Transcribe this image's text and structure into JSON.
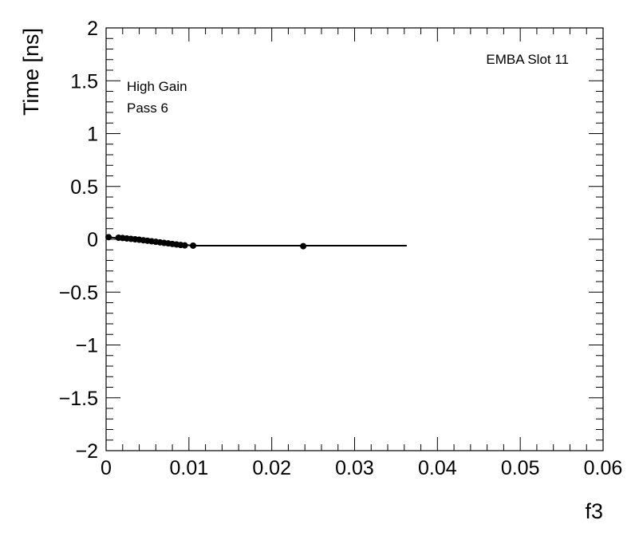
{
  "chart_data": {
    "type": "scatter",
    "title": "",
    "xlabel": "f3",
    "ylabel": "Time [ns]",
    "xlim": [
      0,
      0.06
    ],
    "ylim": [
      -2,
      2
    ],
    "x_ticks": [
      0,
      0.01,
      0.02,
      0.03,
      0.04,
      0.05,
      0.06
    ],
    "x_tick_labels": [
      "0",
      "0.01",
      "0.02",
      "0.03",
      "0.04",
      "0.05",
      "0.06"
    ],
    "y_ticks": [
      -2,
      -1.5,
      -1,
      -0.5,
      0,
      0.5,
      1,
      1.5,
      2
    ],
    "y_tick_labels": [
      "−2",
      "−1.5",
      "−1",
      "−0.5",
      "0",
      "0.5",
      "1",
      "1.5",
      "2"
    ],
    "grid": false,
    "annotations": {
      "slot": "EMBA Slot 11",
      "gain": "High Gain",
      "pass": "Pass 6"
    },
    "series": [
      {
        "x": [
          0.0003,
          0.0015,
          0.002,
          0.0025,
          0.003,
          0.0035,
          0.004,
          0.0045,
          0.005,
          0.0055,
          0.006,
          0.0065,
          0.007,
          0.0075,
          0.008,
          0.0085,
          0.009,
          0.0095,
          0.0105,
          0.0238
        ],
        "y": [
          0.02,
          0.015,
          0.012,
          0.008,
          0.004,
          0.0,
          -0.004,
          -0.009,
          -0.014,
          -0.019,
          -0.024,
          -0.029,
          -0.034,
          -0.039,
          -0.044,
          -0.049,
          -0.054,
          -0.058,
          -0.06,
          -0.065
        ]
      }
    ],
    "fit_line": {
      "segments": [
        {
          "x": [
            0.0003,
            0.0105
          ],
          "y": [
            0.02,
            -0.06
          ]
        },
        {
          "x": [
            0.0105,
            0.0363
          ],
          "y": [
            -0.06,
            -0.06
          ]
        }
      ]
    }
  }
}
